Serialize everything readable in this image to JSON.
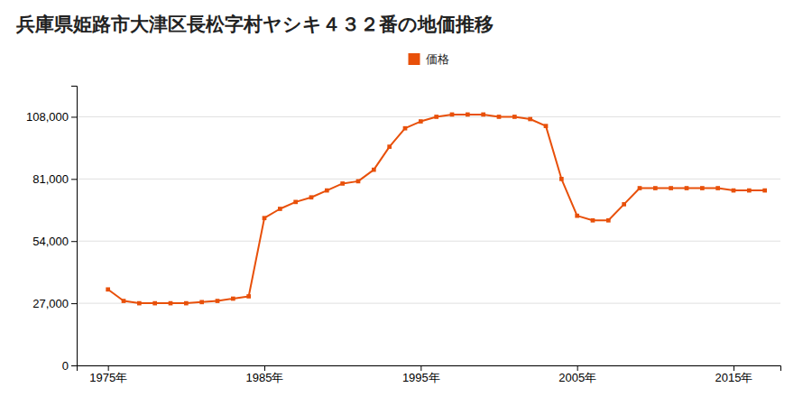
{
  "chart_data": {
    "type": "line",
    "title": "兵庫県姫路市大津区長松字村ヤシキ４３２番の地価推移",
    "x": [
      1975,
      1976,
      1977,
      1978,
      1979,
      1980,
      1981,
      1982,
      1983,
      1984,
      1985,
      1986,
      1987,
      1988,
      1989,
      1990,
      1991,
      1992,
      1993,
      1994,
      1995,
      1996,
      1997,
      1998,
      1999,
      2000,
      2001,
      2002,
      2003,
      2004,
      2005,
      2006,
      2007,
      2008,
      2009,
      2010,
      2011,
      2012,
      2013,
      2014,
      2015,
      2016,
      2017
    ],
    "series": [
      {
        "name": "価格",
        "color": "#E8500A",
        "marker": "square",
        "values": [
          33000,
          28000,
          27000,
          27000,
          27000,
          27000,
          27500,
          28000,
          29000,
          30000,
          64000,
          68000,
          71000,
          73000,
          76000,
          79000,
          80000,
          85000,
          95000,
          103000,
          106000,
          108000,
          109000,
          109000,
          109000,
          108000,
          108000,
          107000,
          104000,
          81000,
          65000,
          63000,
          63000,
          70000,
          77000,
          77000,
          77000,
          77000,
          77000,
          77000,
          76000,
          76000,
          76000
        ]
      }
    ],
    "xlim": [
      1973,
      2018
    ],
    "xticks": [
      {
        "value": 1975,
        "label": "1975年"
      },
      {
        "value": 1985,
        "label": "1985年"
      },
      {
        "value": 1995,
        "label": "1995年"
      },
      {
        "value": 2005,
        "label": "2005年"
      },
      {
        "value": 2015,
        "label": "2015年"
      }
    ],
    "ylim": [
      0,
      121500
    ],
    "yticks": [
      0,
      {
        "value": 27000,
        "label": "27,000"
      },
      {
        "value": 54000,
        "label": "54,000"
      },
      {
        "value": 81000,
        "label": "81,000"
      },
      {
        "value": 108000,
        "label": "108,000"
      }
    ],
    "grid": true,
    "legend": "top"
  }
}
